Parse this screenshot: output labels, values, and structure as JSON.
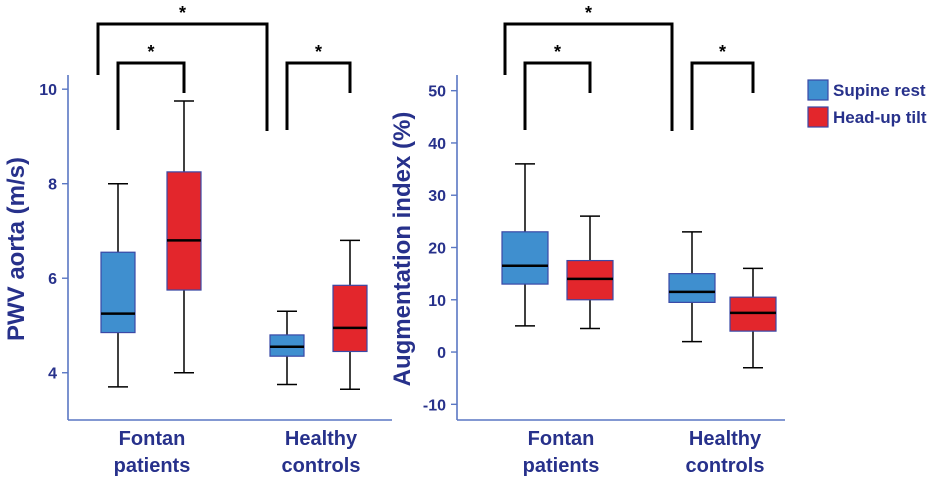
{
  "colors": {
    "supine": "#3f8fcf",
    "headup": "#e3262c",
    "axis": "#5a77c3",
    "text": "#27318b",
    "bracket": "#000000"
  },
  "legend": [
    {
      "label": "Supine rest",
      "color": "#3f8fcf"
    },
    {
      "label": "Head-up tilt",
      "color": "#e3262c"
    }
  ],
  "chart_data": [
    {
      "type": "box",
      "ylabel": "PWV aorta (m/s)",
      "yticks": [
        4,
        6,
        8,
        10
      ],
      "ylim": [
        3.0,
        10.3
      ],
      "categories": [
        [
          "Fontan",
          "patients"
        ],
        [
          "Healthy",
          "controls"
        ]
      ],
      "series": [
        {
          "name": "Supine rest",
          "boxes": [
            {
              "min": 3.7,
              "q1": 4.85,
              "median": 5.25,
              "q3": 6.55,
              "max": 8.0
            },
            {
              "min": 3.75,
              "q1": 4.35,
              "median": 4.55,
              "q3": 4.8,
              "max": 5.3
            }
          ]
        },
        {
          "name": "Head-up tilt",
          "boxes": [
            {
              "min": 4.0,
              "q1": 5.75,
              "median": 6.8,
              "q3": 8.25,
              "max": 9.75
            },
            {
              "min": 3.65,
              "q1": 4.45,
              "median": 4.95,
              "q3": 5.85,
              "max": 6.8
            }
          ]
        }
      ],
      "significance": [
        {
          "from": [
            "Fontan",
            "Supine rest"
          ],
          "to": [
            "Fontan",
            "Head-up tilt"
          ],
          "label": "*"
        },
        {
          "from": [
            "Healthy",
            "Supine rest"
          ],
          "to": [
            "Healthy",
            "Head-up tilt"
          ],
          "label": "*"
        },
        {
          "from": [
            "Fontan",
            "Supine rest"
          ],
          "to": [
            "Healthy",
            "Supine rest"
          ],
          "label": "*"
        }
      ]
    },
    {
      "type": "box",
      "ylabel": "Augmentation index (%)",
      "yticks": [
        -10,
        0,
        10,
        20,
        30,
        40,
        50
      ],
      "ylim": [
        -13,
        53
      ],
      "categories": [
        [
          "Fontan",
          "patients"
        ],
        [
          "Healthy",
          "controls"
        ]
      ],
      "series": [
        {
          "name": "Supine rest",
          "boxes": [
            {
              "min": 5.0,
              "q1": 13.0,
              "median": 16.5,
              "q3": 23.0,
              "max": 36.0
            },
            {
              "min": 2.0,
              "q1": 9.5,
              "median": 11.5,
              "q3": 15.0,
              "max": 23.0
            }
          ]
        },
        {
          "name": "Head-up tilt",
          "boxes": [
            {
              "min": 4.5,
              "q1": 10.0,
              "median": 14.0,
              "q3": 17.5,
              "max": 26.0
            },
            {
              "min": -3.0,
              "q1": 4.0,
              "median": 7.5,
              "q3": 10.5,
              "max": 16.0
            }
          ]
        }
      ],
      "significance": [
        {
          "from": [
            "Fontan",
            "Supine rest"
          ],
          "to": [
            "Fontan",
            "Head-up tilt"
          ],
          "label": "*"
        },
        {
          "from": [
            "Healthy",
            "Supine rest"
          ],
          "to": [
            "Healthy",
            "Head-up tilt"
          ],
          "label": "*"
        },
        {
          "from": [
            "Fontan",
            "Supine rest"
          ],
          "to": [
            "Healthy",
            "Supine rest"
          ],
          "label": "*"
        }
      ]
    }
  ]
}
